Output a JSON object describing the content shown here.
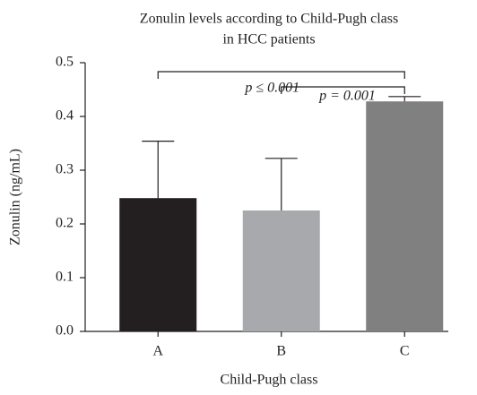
{
  "chart_data": {
    "type": "bar",
    "title": [
      "Zonulin levels according to Child-Pugh class",
      "in HCC patients"
    ],
    "xlabel": "Child-Pugh class",
    "ylabel": "Zonulin (ng/mL)",
    "categories": [
      "A",
      "B",
      "C"
    ],
    "values": [
      0.248,
      0.225,
      0.428
    ],
    "errors": [
      0.106,
      0.097,
      0.009
    ],
    "colors": [
      "#231f20",
      "#a7a9ac",
      "#808080"
    ],
    "ylim": [
      0,
      0.5
    ],
    "yticks": [
      {
        "value": 0,
        "label": "0.0"
      },
      0.1,
      0.2,
      0.3,
      0.4,
      0.5
    ],
    "annotations": [
      {
        "text": "p ≤ 0.001",
        "from": "A",
        "to": "C"
      },
      {
        "text": "p = 0.001",
        "from": "B",
        "to": "C"
      }
    ]
  }
}
